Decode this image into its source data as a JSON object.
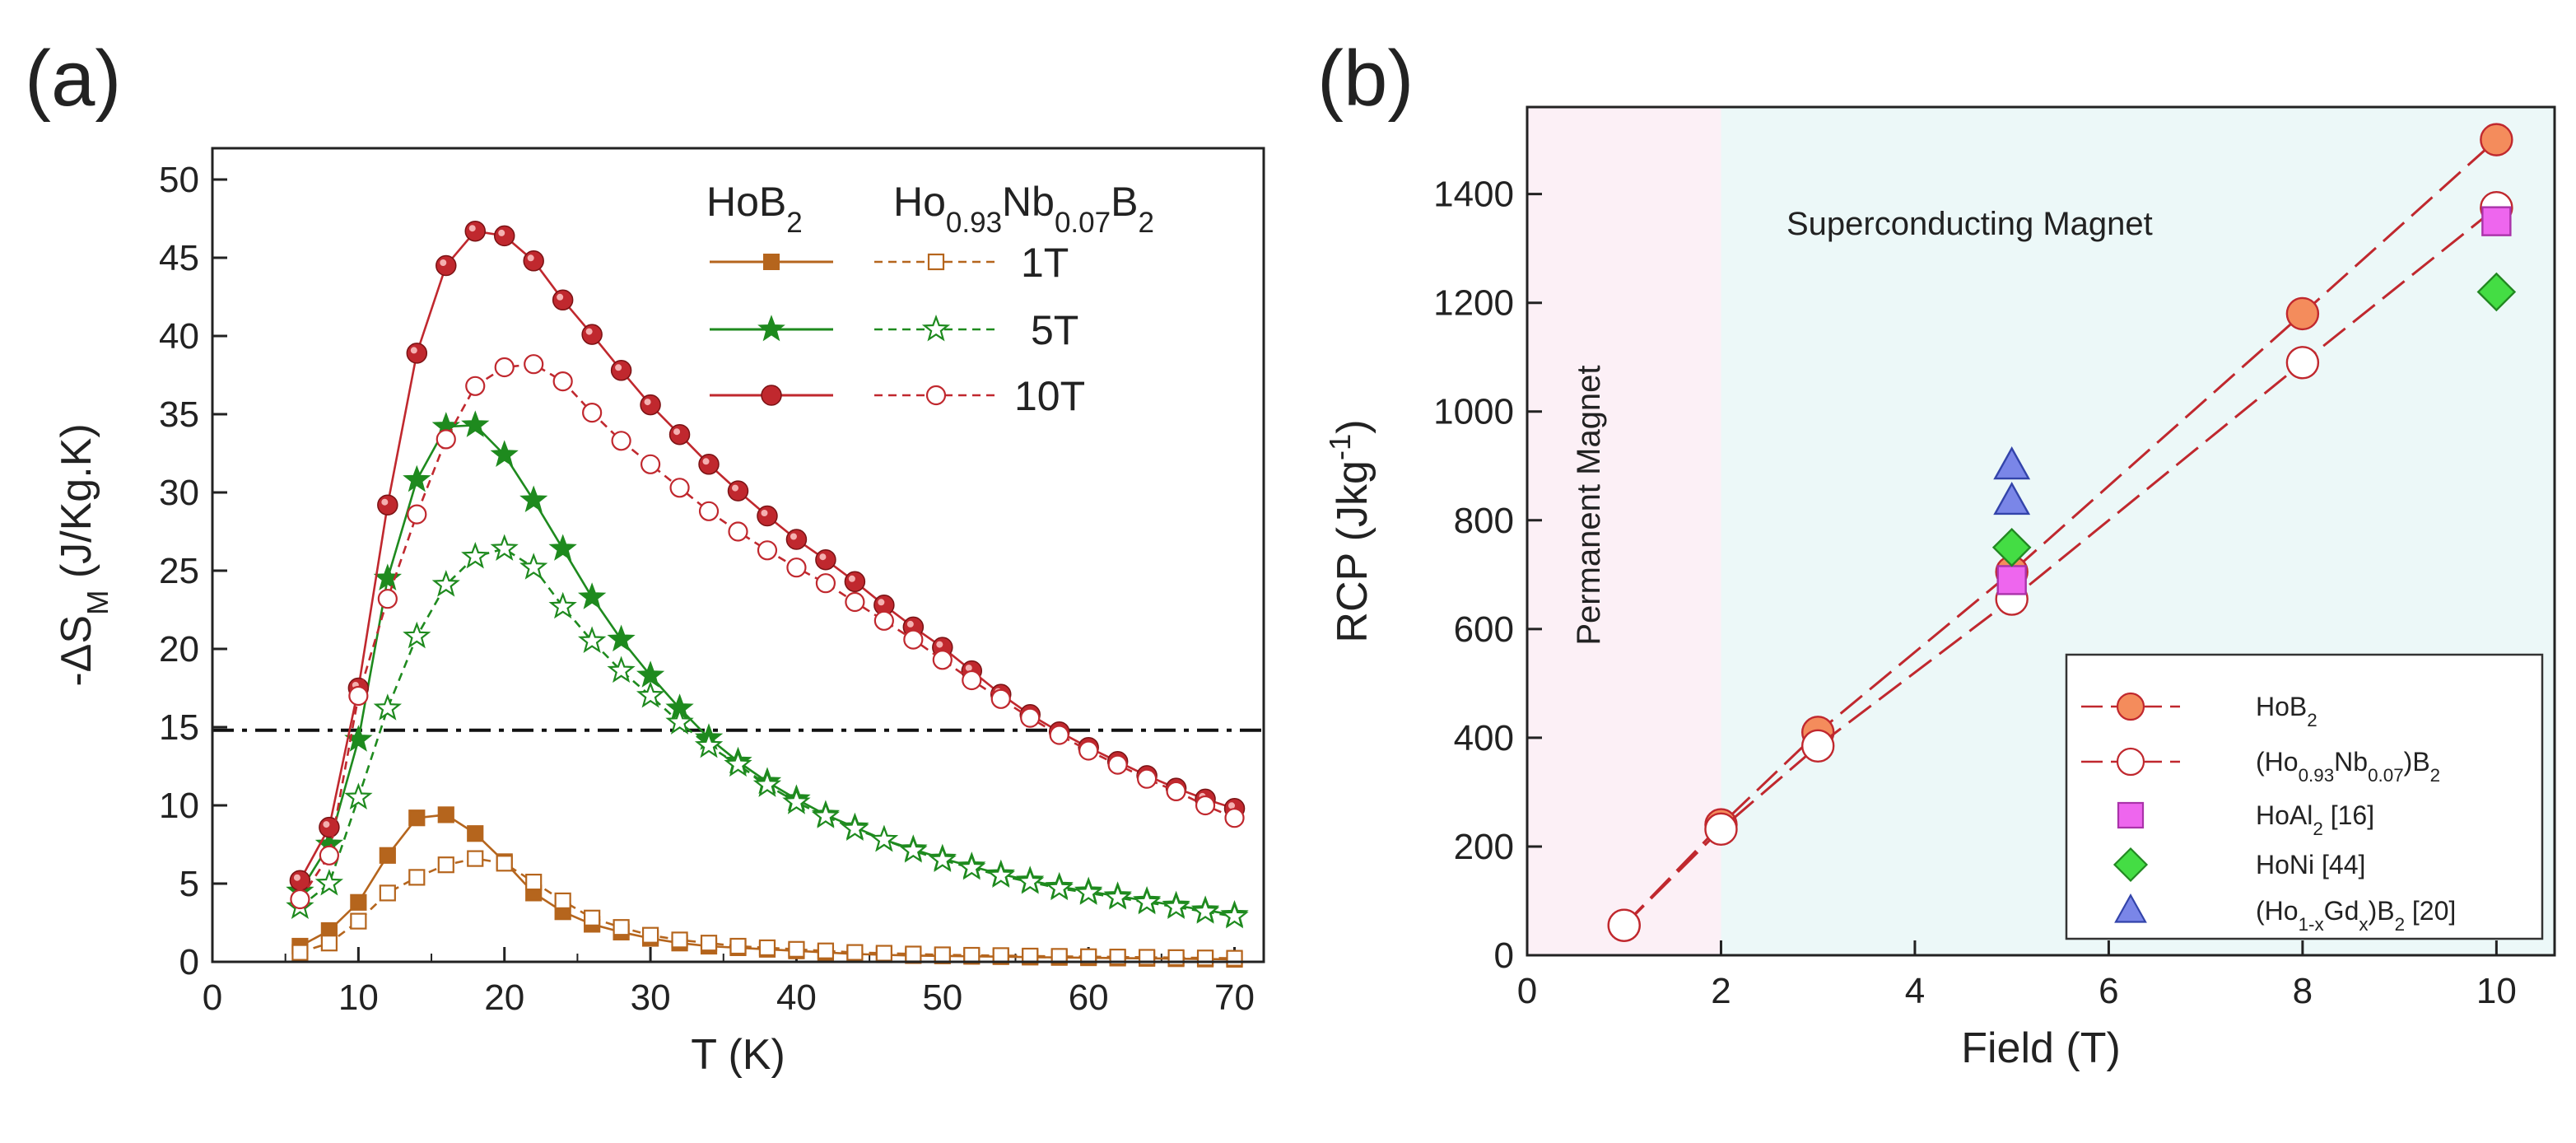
{
  "chart_data": [
    {
      "panel_label": "(a)",
      "type": "line",
      "xlabel": "T (K)",
      "ylabel": "-ΔS_M (J/Kg.K)",
      "xlim": [
        0,
        72
      ],
      "ylim": [
        0,
        52
      ],
      "xticks": [
        0,
        10,
        20,
        30,
        40,
        50,
        60,
        70
      ],
      "yticks": [
        0,
        5,
        10,
        15,
        20,
        25,
        30,
        35,
        40,
        45,
        50
      ],
      "reference_line_y": 14.8,
      "legend_headers": [
        "HoB2",
        "Ho0.93Nb0.07B2"
      ],
      "legend_rows": [
        "1T",
        "5T",
        "10T"
      ],
      "series": [
        {
          "name": "HoB2 1T",
          "field": "1T",
          "group": "HoB2",
          "marker": "square",
          "filled": true,
          "color": "#b5651d",
          "x": [
            6,
            8,
            10,
            12,
            14,
            16,
            18,
            20,
            22,
            24,
            26,
            28,
            30,
            32,
            34,
            36,
            38,
            40,
            42,
            44,
            46,
            48,
            50,
            52,
            54,
            56,
            58,
            60,
            62,
            64,
            66,
            68,
            70
          ],
          "y": [
            1.0,
            2.0,
            3.8,
            6.8,
            9.2,
            9.4,
            8.2,
            6.4,
            4.4,
            3.2,
            2.4,
            1.9,
            1.5,
            1.2,
            1.0,
            0.9,
            0.8,
            0.7,
            0.6,
            0.5,
            0.45,
            0.4,
            0.38,
            0.35,
            0.33,
            0.3,
            0.28,
            0.26,
            0.24,
            0.22,
            0.2,
            0.18,
            0.16
          ]
        },
        {
          "name": "Ho0.93Nb0.07B2 1T",
          "field": "1T",
          "group": "Ho0.93Nb0.07B2",
          "marker": "square",
          "filled": false,
          "color": "#b5651d",
          "x": [
            6,
            8,
            10,
            12,
            14,
            16,
            18,
            20,
            22,
            24,
            26,
            28,
            30,
            32,
            34,
            36,
            38,
            40,
            42,
            44,
            46,
            48,
            50,
            52,
            54,
            56,
            58,
            60,
            62,
            64,
            66,
            68,
            70
          ],
          "y": [
            0.6,
            1.2,
            2.6,
            4.4,
            5.4,
            6.2,
            6.6,
            6.3,
            5.1,
            3.9,
            2.8,
            2.2,
            1.7,
            1.4,
            1.2,
            1.0,
            0.9,
            0.8,
            0.7,
            0.6,
            0.55,
            0.5,
            0.45,
            0.42,
            0.4,
            0.37,
            0.35,
            0.33,
            0.31,
            0.29,
            0.27,
            0.25,
            0.23
          ]
        },
        {
          "name": "HoB2 5T",
          "field": "5T",
          "group": "HoB2",
          "marker": "star",
          "filled": true,
          "color": "#1e8a1e",
          "x": [
            6,
            8,
            10,
            12,
            14,
            16,
            18,
            20,
            22,
            24,
            26,
            28,
            30,
            32,
            34,
            36,
            38,
            40,
            42,
            44,
            46,
            48,
            50,
            52,
            54,
            56,
            58,
            60,
            62,
            64,
            66,
            68,
            70
          ],
          "y": [
            4.5,
            7.5,
            14.2,
            24.5,
            30.8,
            34.2,
            34.3,
            32.4,
            29.5,
            26.4,
            23.3,
            20.6,
            18.3,
            16.2,
            14.3,
            12.8,
            11.5,
            10.4,
            9.4,
            8.6,
            7.8,
            7.2,
            6.6,
            6.1,
            5.6,
            5.2,
            4.8,
            4.5,
            4.2,
            3.9,
            3.6,
            3.3,
            3.0
          ]
        },
        {
          "name": "Ho0.93Nb0.07B2 5T",
          "field": "5T",
          "group": "Ho0.93Nb0.07B2",
          "marker": "star",
          "filled": false,
          "color": "#1e8a1e",
          "x": [
            6,
            8,
            10,
            12,
            14,
            16,
            18,
            20,
            22,
            24,
            26,
            28,
            30,
            32,
            34,
            36,
            38,
            40,
            42,
            44,
            46,
            48,
            50,
            52,
            54,
            56,
            58,
            60,
            62,
            64,
            66,
            68,
            70
          ],
          "y": [
            3.5,
            5.0,
            10.5,
            16.2,
            20.8,
            24.1,
            25.9,
            26.4,
            25.2,
            22.7,
            20.5,
            18.6,
            17.0,
            15.3,
            13.8,
            12.6,
            11.3,
            10.2,
            9.3,
            8.5,
            7.8,
            7.1,
            6.5,
            6.0,
            5.5,
            5.1,
            4.7,
            4.4,
            4.1,
            3.8,
            3.5,
            3.2,
            2.9
          ]
        },
        {
          "name": "HoB2 10T",
          "field": "10T",
          "group": "HoB2",
          "marker": "circle",
          "filled": true,
          "color": "#c0282e",
          "x": [
            6,
            8,
            10,
            12,
            14,
            16,
            18,
            20,
            22,
            24,
            26,
            28,
            30,
            32,
            34,
            36,
            38,
            40,
            42,
            44,
            46,
            48,
            50,
            52,
            54,
            56,
            58,
            60,
            62,
            64,
            66,
            68,
            70
          ],
          "y": [
            5.2,
            8.6,
            17.5,
            29.2,
            38.9,
            44.5,
            46.7,
            46.4,
            44.8,
            42.3,
            40.1,
            37.8,
            35.6,
            33.7,
            31.8,
            30.1,
            28.5,
            27.0,
            25.7,
            24.3,
            22.8,
            21.4,
            20.1,
            18.6,
            17.1,
            15.8,
            14.7,
            13.7,
            12.8,
            11.9,
            11.1,
            10.4,
            9.8
          ]
        },
        {
          "name": "Ho0.93Nb0.07B2 10T",
          "field": "10T",
          "group": "Ho0.93Nb0.07B2",
          "marker": "circle",
          "filled": false,
          "color": "#c0282e",
          "x": [
            6,
            8,
            10,
            12,
            14,
            16,
            18,
            20,
            22,
            24,
            26,
            28,
            30,
            32,
            34,
            36,
            38,
            40,
            42,
            44,
            46,
            48,
            50,
            52,
            54,
            56,
            58,
            60,
            62,
            64,
            66,
            68,
            70
          ],
          "y": [
            4.0,
            6.8,
            17.0,
            23.2,
            28.6,
            33.4,
            36.8,
            38.0,
            38.2,
            37.1,
            35.1,
            33.3,
            31.8,
            30.3,
            28.8,
            27.5,
            26.3,
            25.2,
            24.2,
            23.0,
            21.8,
            20.6,
            19.3,
            18.0,
            16.8,
            15.6,
            14.5,
            13.5,
            12.6,
            11.7,
            10.9,
            10.0,
            9.2
          ]
        }
      ]
    },
    {
      "panel_label": "(b)",
      "type": "scatter",
      "xlabel": "Field (T)",
      "ylabel_prefix": "RCP (Jkg",
      "ylabel_sup": "-1",
      "ylabel_suffix": ")",
      "xlim": [
        0,
        10.6
      ],
      "ylim": [
        0,
        1560
      ],
      "xticks": [
        0,
        2,
        4,
        6,
        8,
        10
      ],
      "yticks": [
        0,
        200,
        400,
        600,
        800,
        1000,
        1200,
        1400
      ],
      "regions": [
        {
          "label": "Permanent Magnet",
          "x_range": [
            0,
            2
          ],
          "color": "#fcf0f6"
        },
        {
          "label": "Superconducting Magnet",
          "x_range": [
            2,
            10.6
          ],
          "color": "#ecf8f8"
        }
      ],
      "series": [
        {
          "name": "HoB2",
          "legend": [
            "HoB",
            "2",
            ""
          ],
          "marker": "circle",
          "filled": true,
          "fill": "#f48c5c",
          "stroke": "#c0282e",
          "line": true,
          "x": [
            1,
            2,
            3,
            5,
            8,
            10
          ],
          "y": [
            55,
            240,
            410,
            705,
            1180,
            1500
          ]
        },
        {
          "name": "(Ho0.93Nb0.07)B2",
          "legend": [
            "(Ho",
            "0.93",
            "Nb",
            "0.07",
            ")B",
            "2"
          ],
          "marker": "circle",
          "filled": false,
          "fill": "#ffffff",
          "stroke": "#c0282e",
          "line": true,
          "x": [
            1,
            2,
            3,
            5,
            8,
            10
          ],
          "y": [
            55,
            232,
            385,
            655,
            1090,
            1375
          ]
        },
        {
          "name": "HoAl2 [16]",
          "legend": [
            "HoAl",
            "2",
            " [16]"
          ],
          "marker": "square",
          "filled": true,
          "fill": "#ee66ee",
          "stroke": "#aa33aa",
          "line": false,
          "x": [
            5,
            10
          ],
          "y": [
            690,
            1350
          ]
        },
        {
          "name": "HoNi [44]",
          "legend": [
            "HoNi [44]"
          ],
          "marker": "diamond",
          "filled": true,
          "fill": "#44dd44",
          "stroke": "#228822",
          "line": false,
          "x": [
            5,
            10
          ],
          "y": [
            750,
            1220
          ]
        },
        {
          "name": "(Ho1-xGdx)B2 [20]",
          "legend": [
            "(Ho",
            "1-x",
            "Gd",
            "x",
            ")B",
            "2",
            " [20]"
          ],
          "marker": "triangle",
          "filled": true,
          "fill": "#7a86e8",
          "stroke": "#3344aa",
          "line": false,
          "x": [
            5,
            5
          ],
          "y": [
            900,
            835
          ]
        }
      ]
    }
  ]
}
